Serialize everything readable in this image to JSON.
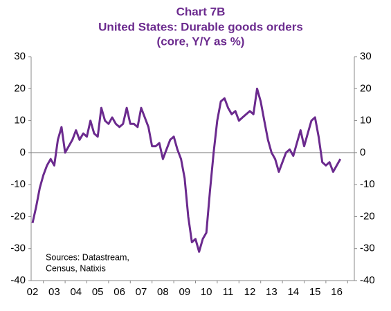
{
  "chart_data": {
    "type": "line",
    "title": [
      "Chart 7B",
      "United States: Durable goods orders",
      "(core, Y/Y as %)"
    ],
    "annotation": [
      "Sources: Datastream,",
      "Census, Natixis"
    ],
    "categories": [
      "02",
      null,
      null,
      null,
      null,
      null,
      "03",
      null,
      null,
      null,
      null,
      null,
      "04",
      null,
      null,
      null,
      null,
      null,
      "05",
      null,
      null,
      null,
      null,
      null,
      "06",
      null,
      null,
      null,
      null,
      null,
      "07",
      null,
      null,
      null,
      null,
      null,
      "08",
      null,
      null,
      null,
      null,
      null,
      "09",
      null,
      null,
      null,
      null,
      null,
      "10",
      null,
      null,
      null,
      null,
      null,
      "11",
      null,
      null,
      null,
      null,
      null,
      "12",
      null,
      null,
      null,
      null,
      null,
      "13",
      null,
      null,
      null,
      null,
      null,
      "14",
      null,
      null,
      null,
      null,
      null,
      "15",
      null,
      null,
      null,
      null,
      null,
      "16",
      null
    ],
    "series": [
      {
        "name": "Durable goods orders",
        "color": "#6b2a8e",
        "values": [
          -22,
          -17,
          -11,
          -7,
          -4,
          -2,
          -4,
          4,
          8,
          0,
          2,
          4,
          7,
          4,
          6,
          5,
          10,
          6,
          5,
          14,
          10,
          9,
          11,
          9,
          8,
          9,
          14,
          9,
          9,
          8,
          14,
          11,
          8,
          2,
          2,
          3,
          -2,
          1,
          4,
          5,
          1,
          -2,
          -8,
          -20,
          -28,
          -27,
          -31,
          -27,
          -25,
          -12,
          0,
          10,
          16,
          17,
          14,
          12,
          13,
          10,
          11,
          12,
          13,
          12,
          20,
          16,
          10,
          4,
          0,
          -2,
          -6,
          -3,
          0,
          1,
          -1,
          3,
          7,
          2,
          6,
          10,
          11,
          5,
          -3,
          -4,
          -3,
          -6,
          -4,
          -2
        ]
      }
    ],
    "ylim": [
      -40,
      30
    ],
    "yticks": [
      -40,
      -30,
      -20,
      -10,
      0,
      10,
      20,
      30
    ],
    "y2lim": [
      -40,
      30
    ],
    "y2ticks": [
      -40,
      -30,
      -20,
      -10,
      0,
      10,
      20,
      30
    ]
  }
}
